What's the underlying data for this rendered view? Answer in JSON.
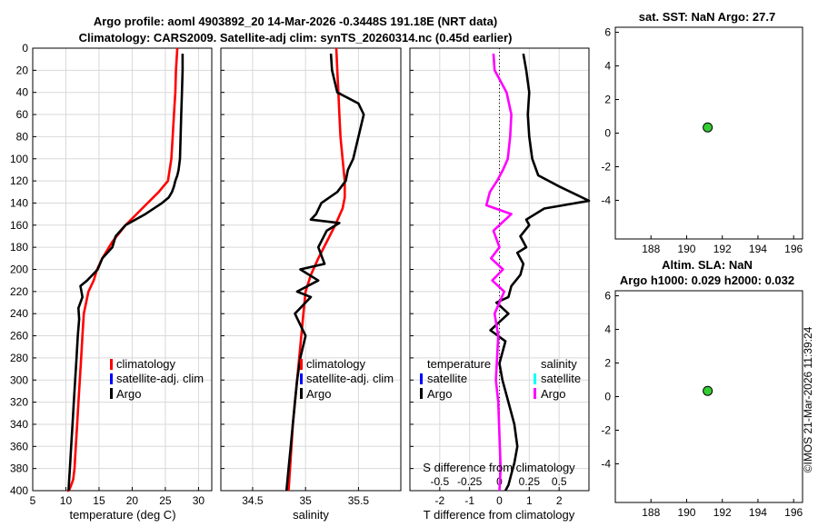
{
  "titles": {
    "line1": "Argo profile: aoml 4903892_20 14-Mar-2026 -0.3448S 191.18E (NRT data)",
    "line2": "Climatology: CARS2009. Satellite-adj clim: synTS_20260314.nc (0.45d earlier)",
    "sst": "sat. SST: NaN Argo: 27.7",
    "sla1": "Altim. SLA: NaN",
    "sla2": "Argo h1000: 0.029 h2000: 0.032",
    "credit": "©IMOS 21-Mar-2026 11:39:24"
  },
  "colors": {
    "climatology": "#ff0000",
    "satellite": "#0000ff",
    "satellite_s": "#00ffff",
    "argo": "#000000",
    "argo_s": "#ff00ff",
    "marker": "#33cc33",
    "grid": "#d9d9d9"
  },
  "chart_data": [
    {
      "type": "line",
      "name": "temperature",
      "xlabel": "temperature (deg C)",
      "ylabel": "",
      "xlim": [
        5,
        32
      ],
      "ylim": [
        0,
        400
      ],
      "y_reversed": true,
      "xticks": [
        5,
        10,
        15,
        20,
        25,
        30
      ],
      "yticks": [
        0,
        20,
        40,
        60,
        80,
        100,
        120,
        140,
        160,
        180,
        200,
        220,
        240,
        260,
        280,
        300,
        320,
        340,
        360,
        380,
        400
      ],
      "legend": [
        "climatology",
        "satellite-adj. clim",
        "Argo"
      ],
      "series": [
        {
          "name": "climatology",
          "color": "#ff0000",
          "x": [
            26.8,
            26.6,
            26.5,
            26.3,
            26.1,
            25.9,
            25.4,
            24.0,
            21.5,
            19.0,
            17.0,
            15.5,
            14.7,
            14.2,
            13.4,
            12.7,
            12.5,
            12.3,
            12.1,
            11.9,
            11.7,
            11.5,
            11.3,
            11.1,
            10.8,
            10.6,
            10.4,
            10.2
          ],
          "y": [
            0,
            20,
            40,
            60,
            80,
            100,
            120,
            130,
            145,
            160,
            175,
            190,
            200,
            210,
            220,
            240,
            260,
            280,
            300,
            320,
            340,
            360,
            380,
            390,
            395,
            398,
            400,
            400
          ]
        },
        {
          "name": "Argo",
          "color": "#000000",
          "x": [
            27.6,
            27.6,
            27.5,
            27.4,
            27.3,
            27.2,
            27.0,
            26.8,
            26.5,
            26.3,
            26.0,
            25.5,
            24.5,
            22.0,
            19.0,
            17.5,
            17.0,
            15.5,
            14.8,
            14.0,
            13.2,
            12.2,
            12.5,
            11.9,
            12.0,
            11.8,
            11.6,
            11.4,
            11.2,
            11.0,
            10.8,
            10.6,
            10.5,
            10.4
          ],
          "y": [
            5,
            20,
            40,
            60,
            80,
            100,
            110,
            115,
            120,
            125,
            130,
            135,
            140,
            150,
            160,
            170,
            180,
            190,
            200,
            205,
            210,
            215,
            225,
            235,
            245,
            260,
            280,
            300,
            320,
            340,
            360,
            380,
            390,
            400
          ]
        }
      ]
    },
    {
      "type": "line",
      "name": "salinity",
      "xlabel": "salinity",
      "xlim": [
        34.2,
        35.9
      ],
      "ylim": [
        0,
        400
      ],
      "y_reversed": true,
      "xticks": [
        34.5,
        35,
        35.5
      ],
      "legend": [
        "climatology",
        "satellite-adj. clim",
        "Argo"
      ],
      "series": [
        {
          "name": "climatology",
          "color": "#ff0000",
          "x": [
            35.29,
            35.3,
            35.31,
            35.32,
            35.33,
            35.35,
            35.37,
            35.37,
            35.35,
            35.28,
            35.2,
            35.12,
            35.05,
            35.0,
            34.98,
            34.96,
            34.94,
            34.92,
            34.9,
            34.88,
            34.86,
            34.84
          ],
          "y": [
            0,
            20,
            40,
            60,
            80,
            100,
            120,
            135,
            145,
            160,
            175,
            190,
            205,
            220,
            240,
            260,
            280,
            300,
            320,
            340,
            370,
            400
          ]
        },
        {
          "name": "Argo",
          "color": "#000000",
          "x": [
            35.24,
            35.25,
            35.3,
            35.5,
            35.55,
            35.5,
            35.45,
            35.4,
            35.38,
            35.3,
            35.15,
            35.1,
            35.05,
            35.32,
            35.2,
            35.12,
            35.18,
            34.95,
            35.12,
            34.92,
            35.05,
            34.9,
            35.0,
            34.95,
            34.92,
            34.9,
            34.88,
            34.86,
            34.84,
            34.82
          ],
          "y": [
            5,
            20,
            40,
            50,
            60,
            80,
            100,
            110,
            120,
            130,
            140,
            150,
            155,
            158,
            165,
            180,
            195,
            200,
            210,
            220,
            225,
            240,
            260,
            280,
            300,
            320,
            340,
            360,
            380,
            400
          ]
        }
      ]
    },
    {
      "type": "line",
      "name": "difference",
      "xlabel": "T difference from climatology",
      "top_label": "S difference from climatology",
      "xlim": [
        -3,
        3
      ],
      "ylim": [
        0,
        400
      ],
      "y_reversed": true,
      "xticks": [
        -2,
        -1,
        0,
        1,
        2
      ],
      "s_xlim": [
        -0.75,
        0.75
      ],
      "s_xticks": [
        -0.5,
        -0.25,
        0,
        0.25,
        0.5
      ],
      "s_xticklabels": [
        "-0.5",
        "-0.25",
        "0",
        "0.25",
        "0.5"
      ],
      "legend_t_title": "temperature",
      "legend_s_title": "salinity",
      "legend": [
        "satellite",
        "Argo",
        "satellite",
        "Argo"
      ],
      "series": [
        {
          "name": "T diff Argo",
          "color": "#000000",
          "units": "T",
          "x": [
            0.8,
            0.9,
            1.0,
            0.95,
            1.0,
            1.1,
            1.3,
            2.0,
            3.0,
            1.5,
            0.9,
            1.0,
            0.7,
            0.9,
            0.6,
            0.8,
            0.7,
            0.4,
            0.3,
            -0.1,
            0.3,
            -0.3,
            0.2,
            0.1,
            0.0,
            0.1,
            0.3,
            0.5,
            0.6,
            0.5,
            0.4,
            0.3,
            0.2
          ],
          "y": [
            5,
            20,
            40,
            60,
            80,
            100,
            115,
            125,
            138,
            145,
            155,
            160,
            170,
            180,
            185,
            195,
            205,
            215,
            225,
            230,
            240,
            255,
            265,
            275,
            285,
            300,
            320,
            340,
            360,
            375,
            385,
            395,
            400
          ]
        },
        {
          "name": "S diff Argo",
          "color": "#ff00ff",
          "units": "S",
          "x": [
            -0.05,
            -0.04,
            0.06,
            0.1,
            0.09,
            0.07,
            0.03,
            -0.02,
            -0.08,
            -0.11,
            0.1,
            -0.05,
            0.0,
            -0.07,
            0.03,
            -0.06,
            0.04,
            -0.04,
            -0.01,
            -0.02,
            -0.03,
            -0.01,
            0.0,
            0.01,
            0.0
          ],
          "y": [
            5,
            20,
            40,
            60,
            80,
            100,
            110,
            120,
            130,
            142,
            150,
            165,
            180,
            190,
            200,
            210,
            220,
            240,
            260,
            280,
            300,
            320,
            350,
            380,
            400
          ]
        }
      ]
    },
    {
      "type": "scatter",
      "name": "sst",
      "xlim": [
        186,
        196.5
      ],
      "ylim": [
        -6.3,
        6.3
      ],
      "xticks": [
        188,
        190,
        192,
        194,
        196
      ],
      "yticks": [
        6,
        4,
        2,
        0,
        -2,
        -4
      ],
      "points": [
        {
          "x": 191.18,
          "y": 0.34
        }
      ]
    },
    {
      "type": "scatter",
      "name": "sla",
      "xlim": [
        186,
        196.5
      ],
      "ylim": [
        -6.3,
        6.3
      ],
      "xticks": [
        188,
        190,
        192,
        194,
        196
      ],
      "yticks": [
        6,
        4,
        2,
        0,
        -2,
        -4
      ],
      "points": [
        {
          "x": 191.18,
          "y": 0.34
        }
      ]
    }
  ]
}
